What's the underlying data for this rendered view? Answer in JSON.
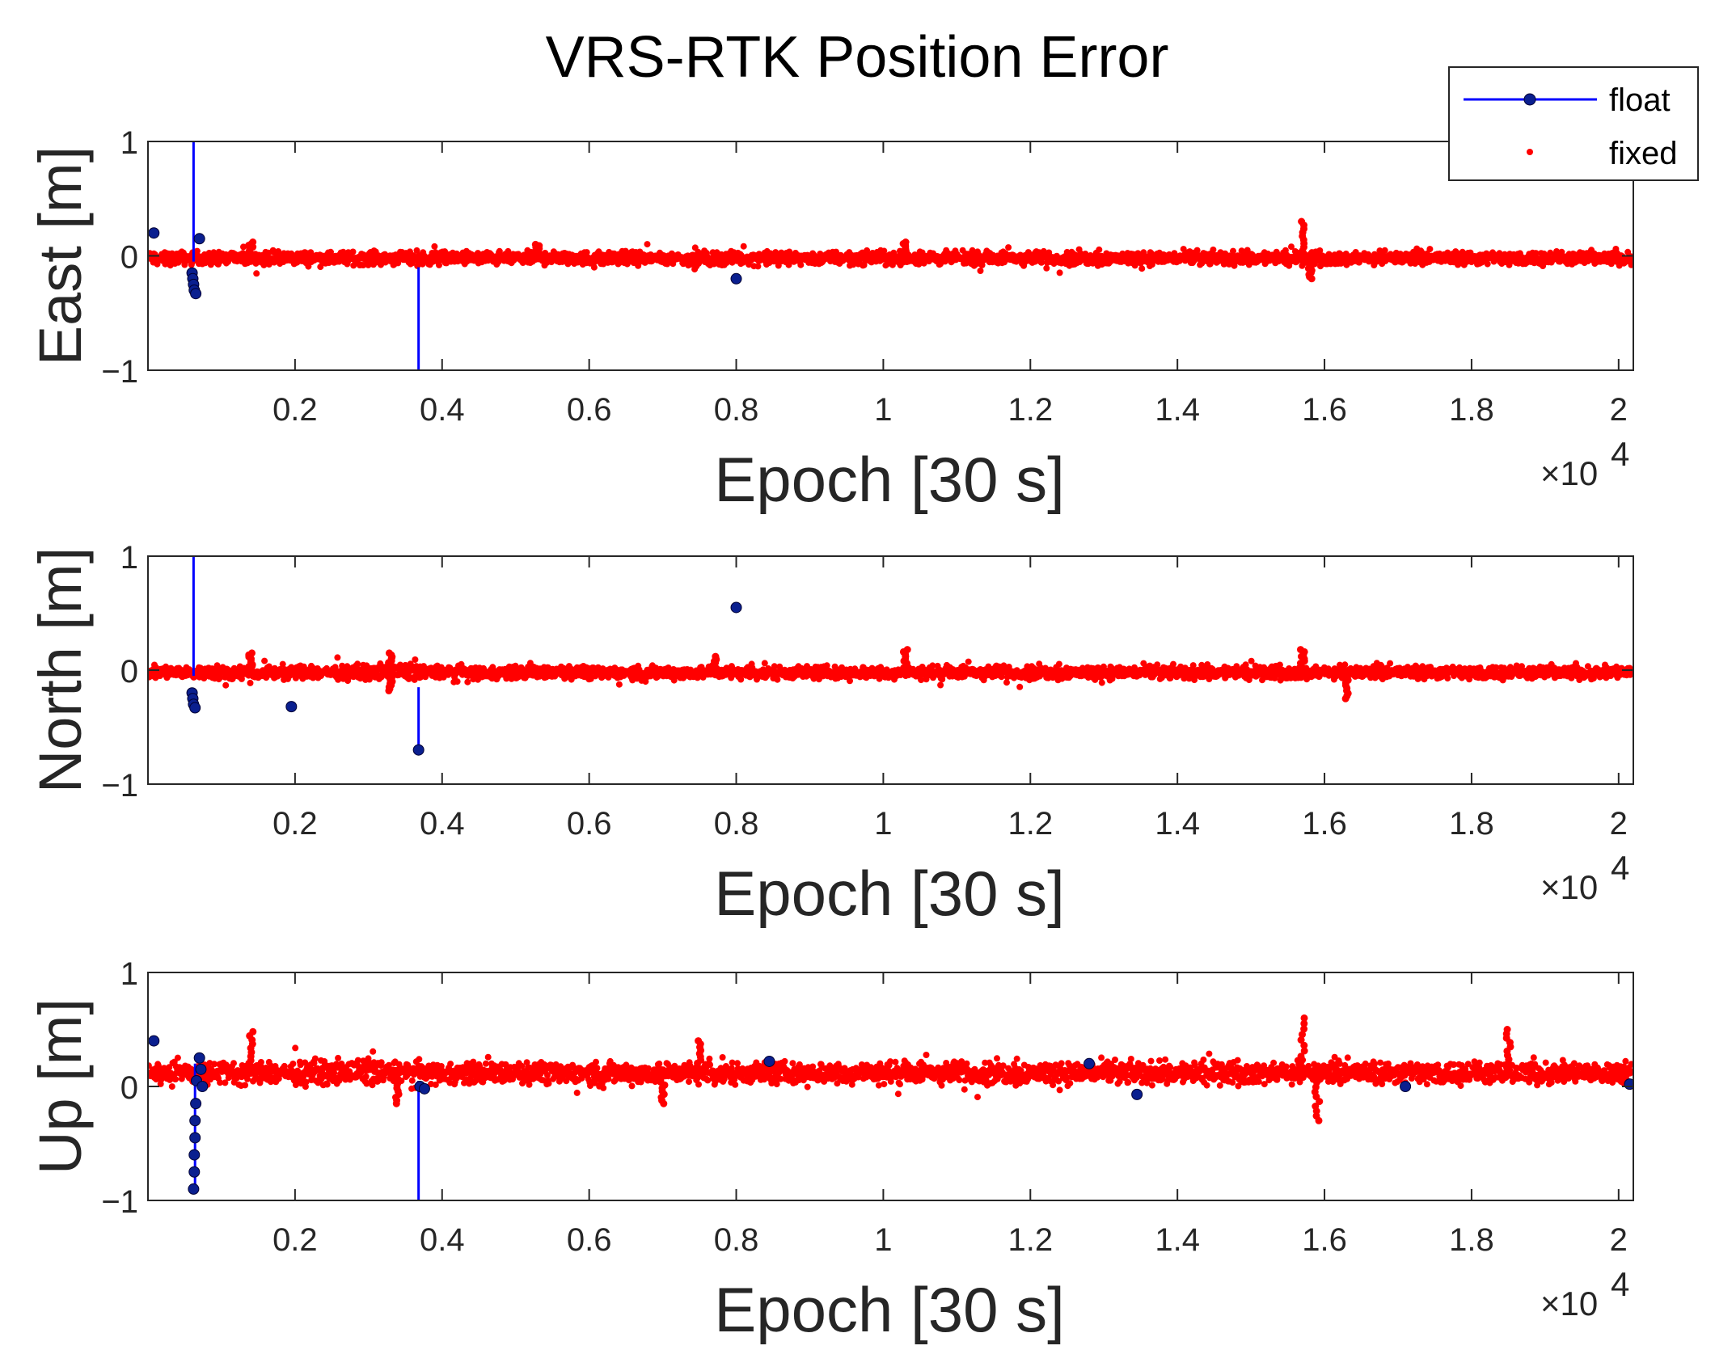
{
  "figure": {
    "title": "VRS-RTK Position Error",
    "colors": {
      "float": "#0000ff",
      "float_marker": "#0a1f8f",
      "fixed": "#ff0000",
      "axis": "#262626"
    }
  },
  "legend": {
    "entries": [
      {
        "label": "float",
        "series": "float"
      },
      {
        "label": "fixed",
        "series": "fixed"
      }
    ],
    "placement": "top-right"
  },
  "chart_data": [
    {
      "type": "scatter",
      "panel": "east",
      "ylabel": "East [m]",
      "xlabel": "Epoch [30 s]",
      "x_multiplier": "×10",
      "x_exponent": "4",
      "xlim": [
        0,
        20200
      ],
      "ylim": [
        -1,
        1
      ],
      "xticks": [
        2000,
        4000,
        6000,
        8000,
        10000,
        12000,
        14000,
        16000,
        18000,
        20000
      ],
      "xtick_labels": [
        "0.2",
        "0.4",
        "0.6",
        "0.8",
        "1",
        "1.2",
        "1.4",
        "1.6",
        "1.8",
        "2"
      ],
      "yticks": [
        -1,
        0,
        1
      ],
      "ytick_labels": [
        "−1",
        "0",
        "1"
      ],
      "fixed_band": {
        "center": -0.02,
        "halfwidth": 0.06,
        "spikes": [
          {
            "x": 1400,
            "y": 0.12
          },
          {
            "x": 5300,
            "y": 0.1
          },
          {
            "x": 10300,
            "y": 0.12
          },
          {
            "x": 15700,
            "y": 0.3
          },
          {
            "x": 15800,
            "y": -0.2
          }
        ]
      },
      "series": [
        {
          "name": "float",
          "lines": [
            {
              "x": 620,
              "from": 1.0,
              "to": -0.05
            },
            {
              "x": 3680,
              "from": -0.1,
              "to": -1.0
            }
          ],
          "points": [
            {
              "x": 80,
              "y": 0.2
            },
            {
              "x": 600,
              "y": -0.15
            },
            {
              "x": 610,
              "y": -0.2
            },
            {
              "x": 620,
              "y": -0.25
            },
            {
              "x": 630,
              "y": -0.3
            },
            {
              "x": 650,
              "y": -0.33
            },
            {
              "x": 700,
              "y": 0.15
            },
            {
              "x": 8000,
              "y": -0.2
            }
          ]
        }
      ]
    },
    {
      "type": "scatter",
      "panel": "north",
      "ylabel": "North [m]",
      "xlabel": "Epoch [30 s]",
      "x_multiplier": "×10",
      "x_exponent": "4",
      "xlim": [
        0,
        20200
      ],
      "ylim": [
        -1,
        1
      ],
      "xticks": [
        2000,
        4000,
        6000,
        8000,
        10000,
        12000,
        14000,
        16000,
        18000,
        20000
      ],
      "xtick_labels": [
        "0.2",
        "0.4",
        "0.6",
        "0.8",
        "1",
        "1.2",
        "1.4",
        "1.6",
        "1.8",
        "2"
      ],
      "yticks": [
        -1,
        0,
        1
      ],
      "ytick_labels": [
        "−1",
        "0",
        "1"
      ],
      "fixed_band": {
        "center": -0.02,
        "halfwidth": 0.06,
        "spikes": [
          {
            "x": 1400,
            "y": 0.15
          },
          {
            "x": 3300,
            "y": 0.15
          },
          {
            "x": 3300,
            "y": -0.18
          },
          {
            "x": 7700,
            "y": 0.12
          },
          {
            "x": 10300,
            "y": 0.18
          },
          {
            "x": 15700,
            "y": 0.18
          },
          {
            "x": 16300,
            "y": -0.25
          }
        ]
      },
      "series": [
        {
          "name": "float",
          "lines": [
            {
              "x": 620,
              "from": 1.0,
              "to": -0.05
            },
            {
              "x": 3680,
              "from": -0.15,
              "to": -0.7
            }
          ],
          "points": [
            {
              "x": 600,
              "y": -0.2
            },
            {
              "x": 610,
              "y": -0.25
            },
            {
              "x": 620,
              "y": -0.3
            },
            {
              "x": 640,
              "y": -0.33
            },
            {
              "x": 1950,
              "y": -0.32
            },
            {
              "x": 3680,
              "y": -0.7
            },
            {
              "x": 8000,
              "y": 0.55
            }
          ]
        }
      ]
    },
    {
      "type": "scatter",
      "panel": "up",
      "ylabel": "Up [m]",
      "xlabel": "Epoch [30 s]",
      "x_multiplier": "×10",
      "x_exponent": "4",
      "xlim": [
        0,
        20200
      ],
      "ylim": [
        -1,
        1
      ],
      "xticks": [
        2000,
        4000,
        6000,
        8000,
        10000,
        12000,
        14000,
        16000,
        18000,
        20000
      ],
      "xtick_labels": [
        "0.2",
        "0.4",
        "0.6",
        "0.8",
        "1",
        "1.2",
        "1.4",
        "1.6",
        "1.8",
        "2"
      ],
      "yticks": [
        -1,
        0,
        1
      ],
      "ytick_labels": [
        "−1",
        "0",
        "1"
      ],
      "fixed_band": {
        "center": 0.12,
        "halfwidth": 0.1,
        "spikes": [
          {
            "x": 1400,
            "y": 0.48
          },
          {
            "x": 3400,
            "y": -0.15
          },
          {
            "x": 7500,
            "y": 0.4
          },
          {
            "x": 15700,
            "y": 0.6
          },
          {
            "x": 15900,
            "y": -0.3
          },
          {
            "x": 18500,
            "y": 0.5
          },
          {
            "x": 7000,
            "y": -0.15
          }
        ]
      },
      "series": [
        {
          "name": "float",
          "lines": [
            {
              "x": 640,
              "from": 0.2,
              "to": -0.9
            },
            {
              "x": 3680,
              "from": 0.05,
              "to": -1.0
            }
          ],
          "points": [
            {
              "x": 80,
              "y": 0.4
            },
            {
              "x": 620,
              "y": -0.9
            },
            {
              "x": 630,
              "y": -0.75
            },
            {
              "x": 630,
              "y": -0.6
            },
            {
              "x": 640,
              "y": -0.45
            },
            {
              "x": 640,
              "y": -0.3
            },
            {
              "x": 650,
              "y": -0.15
            },
            {
              "x": 660,
              "y": 0.05
            },
            {
              "x": 700,
              "y": 0.25
            },
            {
              "x": 720,
              "y": 0.15
            },
            {
              "x": 740,
              "y": 0.0
            },
            {
              "x": 3700,
              "y": 0.0
            },
            {
              "x": 3760,
              "y": -0.02
            },
            {
              "x": 8450,
              "y": 0.22
            },
            {
              "x": 12800,
              "y": 0.2
            },
            {
              "x": 13450,
              "y": -0.07
            },
            {
              "x": 17100,
              "y": 0.0
            },
            {
              "x": 20150,
              "y": 0.02
            }
          ]
        }
      ]
    }
  ]
}
